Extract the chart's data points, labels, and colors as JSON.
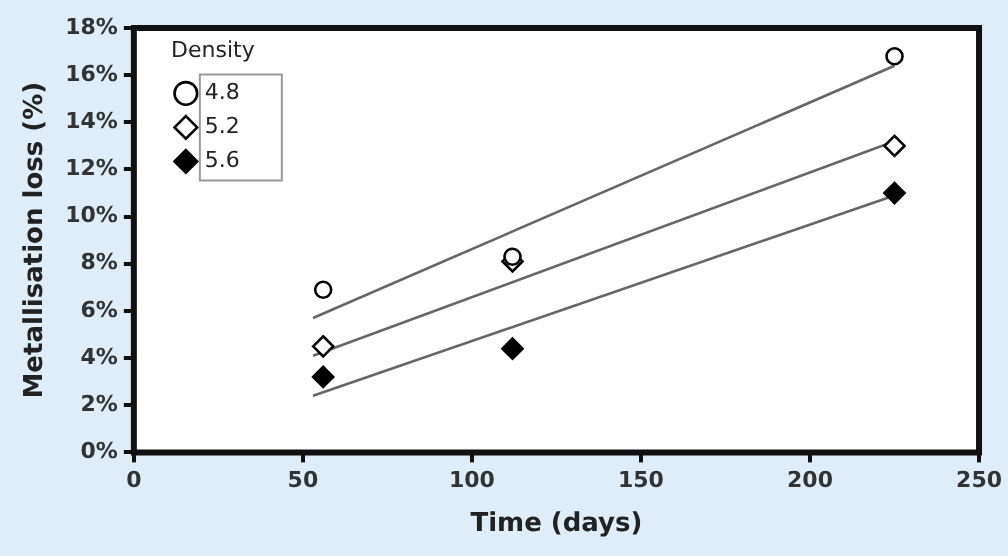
{
  "chart_data": {
    "type": "scatter",
    "xlabel": "Time (days)",
    "ylabel": "Metallisation loss (%)",
    "legend_title": "Density",
    "legend": "top left",
    "grid": false,
    "xlim": [
      0,
      250
    ],
    "xticks": [
      0,
      50,
      100,
      150,
      200,
      250
    ],
    "ylim": [
      0,
      18
    ],
    "yticks": [
      {
        "value": 0,
        "label": "0%"
      },
      {
        "value": 2,
        "label": "2%"
      },
      {
        "value": 4,
        "label": "4%"
      },
      {
        "value": 6,
        "label": "6%"
      },
      {
        "value": 8,
        "label": "8%"
      },
      {
        "value": 10,
        "label": "10%"
      },
      {
        "value": 12,
        "label": "12%"
      },
      {
        "value": 14,
        "label": "14%"
      },
      {
        "value": 16,
        "label": "16%"
      },
      {
        "value": 18,
        "label": "18%"
      }
    ],
    "series": [
      {
        "name": "4.8",
        "color": "#000000",
        "marker": "circle",
        "x": [
          56,
          112,
          225
        ],
        "values": [
          6.9,
          8.3,
          16.8
        ]
      },
      {
        "name": "5.2",
        "color": "#000000",
        "marker": "diamond",
        "x": [
          56,
          112,
          225
        ],
        "values": [
          4.5,
          8.1,
          13.0
        ]
      },
      {
        "name": "5.6",
        "color": "#000000",
        "marker": "diamond",
        "x": [
          56,
          112,
          225
        ],
        "values": [
          3.2,
          4.4,
          11.0
        ]
      },
      {
        "type": "line",
        "color": "#666666",
        "marker": "none",
        "x": [
          53,
          225
        ],
        "values": [
          5.7,
          16.4
        ]
      },
      {
        "type": "line",
        "color": "#666666",
        "marker": "none",
        "x": [
          53,
          225
        ],
        "values": [
          4.1,
          13.2
        ]
      },
      {
        "type": "line",
        "color": "#666666",
        "marker": "none",
        "x": [
          53,
          225
        ],
        "values": [
          2.4,
          10.9
        ]
      }
    ]
  }
}
